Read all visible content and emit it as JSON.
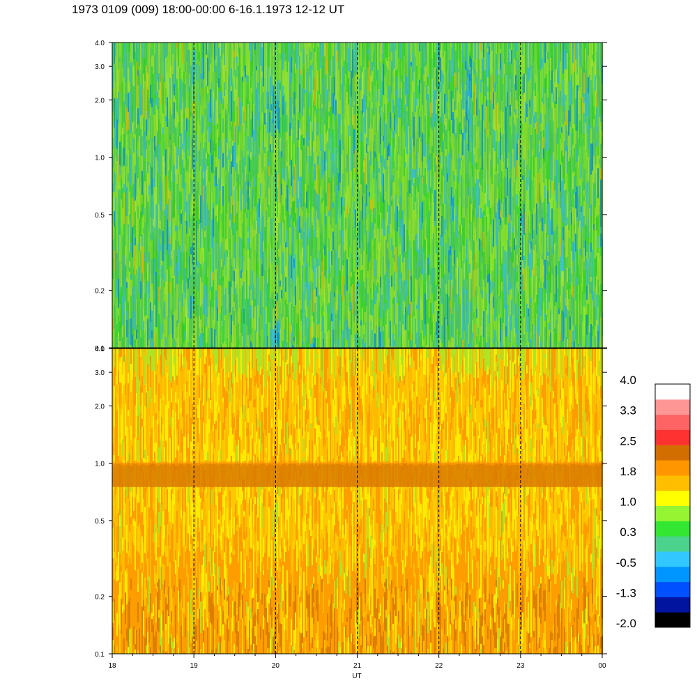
{
  "title": "1973 0109 (009) 18:00-00:00 6-16.1.1973  12-12 UT",
  "chart_data": [
    {
      "type": "heatmap",
      "name": "upper-panel",
      "x_range": [
        "18",
        "00"
      ],
      "y_scale": "log",
      "y_ticks": [
        "0.1",
        "0.2",
        "0.5",
        "1.0",
        "2.0",
        "3.0",
        "4.0"
      ],
      "dominant_level_range": [
        -0.5,
        1.0
      ],
      "features": "mostly green/yellow-green noise with lighter cyan-blue patches near 20 and 22.5"
    },
    {
      "type": "heatmap",
      "name": "lower-panel",
      "x_range": [
        "18",
        "00"
      ],
      "y_scale": "log",
      "y_ticks": [
        "0.1",
        "0.2",
        "0.5",
        "1.0",
        "2.0",
        "3.0",
        "4.0"
      ],
      "dominant_level_range": [
        1.0,
        2.5
      ],
      "features": "yellow/orange background with a persistent dark-orange band between 0.75 and 1.0, and darker orange regions below 0.35"
    }
  ],
  "x_axis": {
    "ticks": [
      "18",
      "19",
      "20",
      "21",
      "22",
      "23",
      "00"
    ],
    "label": "UT",
    "dashed_hours": [
      "19",
      "20",
      "21",
      "22",
      "23"
    ]
  },
  "colorbar": {
    "colors": [
      "#000000",
      "#0014a0",
      "#0050ff",
      "#0096ff",
      "#32c8ff",
      "#4bd28c",
      "#32e632",
      "#96f532",
      "#ffff00",
      "#ffbe00",
      "#ff9600",
      "#d26e00",
      "#ff3232",
      "#ff6464",
      "#ff9696",
      "#ffffff"
    ],
    "labels": [
      "4.0",
      "3.3",
      "2.5",
      "1.8",
      "1.0",
      "0.3",
      "-0.5",
      "-1.3",
      "-2.0"
    ]
  }
}
